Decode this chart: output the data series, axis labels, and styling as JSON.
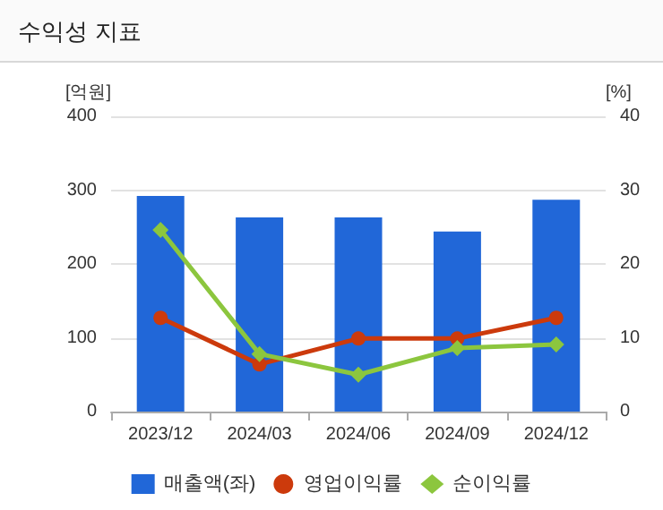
{
  "chart_data": {
    "type": "bar",
    "title": "수익성 지표",
    "ylabel": "[억원]",
    "y2label": "[%]",
    "categories": [
      "2023/12",
      "2024/03",
      "2024/06",
      "2024/09",
      "2024/12"
    ],
    "series": [
      {
        "name": "매출액(좌)",
        "color": "#2167d8",
        "values": [
          292,
          263,
          263,
          244,
          287
        ]
      },
      {
        "name": "영업이익률",
        "type": "line",
        "axis": "y2",
        "marker": "circle",
        "color": "#cc3a0c",
        "values": [
          12.7,
          6.4,
          9.9,
          9.9,
          12.7
        ]
      },
      {
        "name": "순이익률",
        "type": "line",
        "axis": "y2",
        "marker": "diamond",
        "color": "#8cc63e",
        "values": [
          24.6,
          7.8,
          5.0,
          8.6,
          9.1
        ]
      }
    ],
    "ylim": [
      0,
      400
    ],
    "yticks": [
      0,
      100,
      200,
      300,
      400
    ],
    "y2lim": [
      0,
      40
    ],
    "y2ticks": [
      0,
      10,
      20,
      30,
      40
    ],
    "grid": "y",
    "legend": "bottom"
  }
}
